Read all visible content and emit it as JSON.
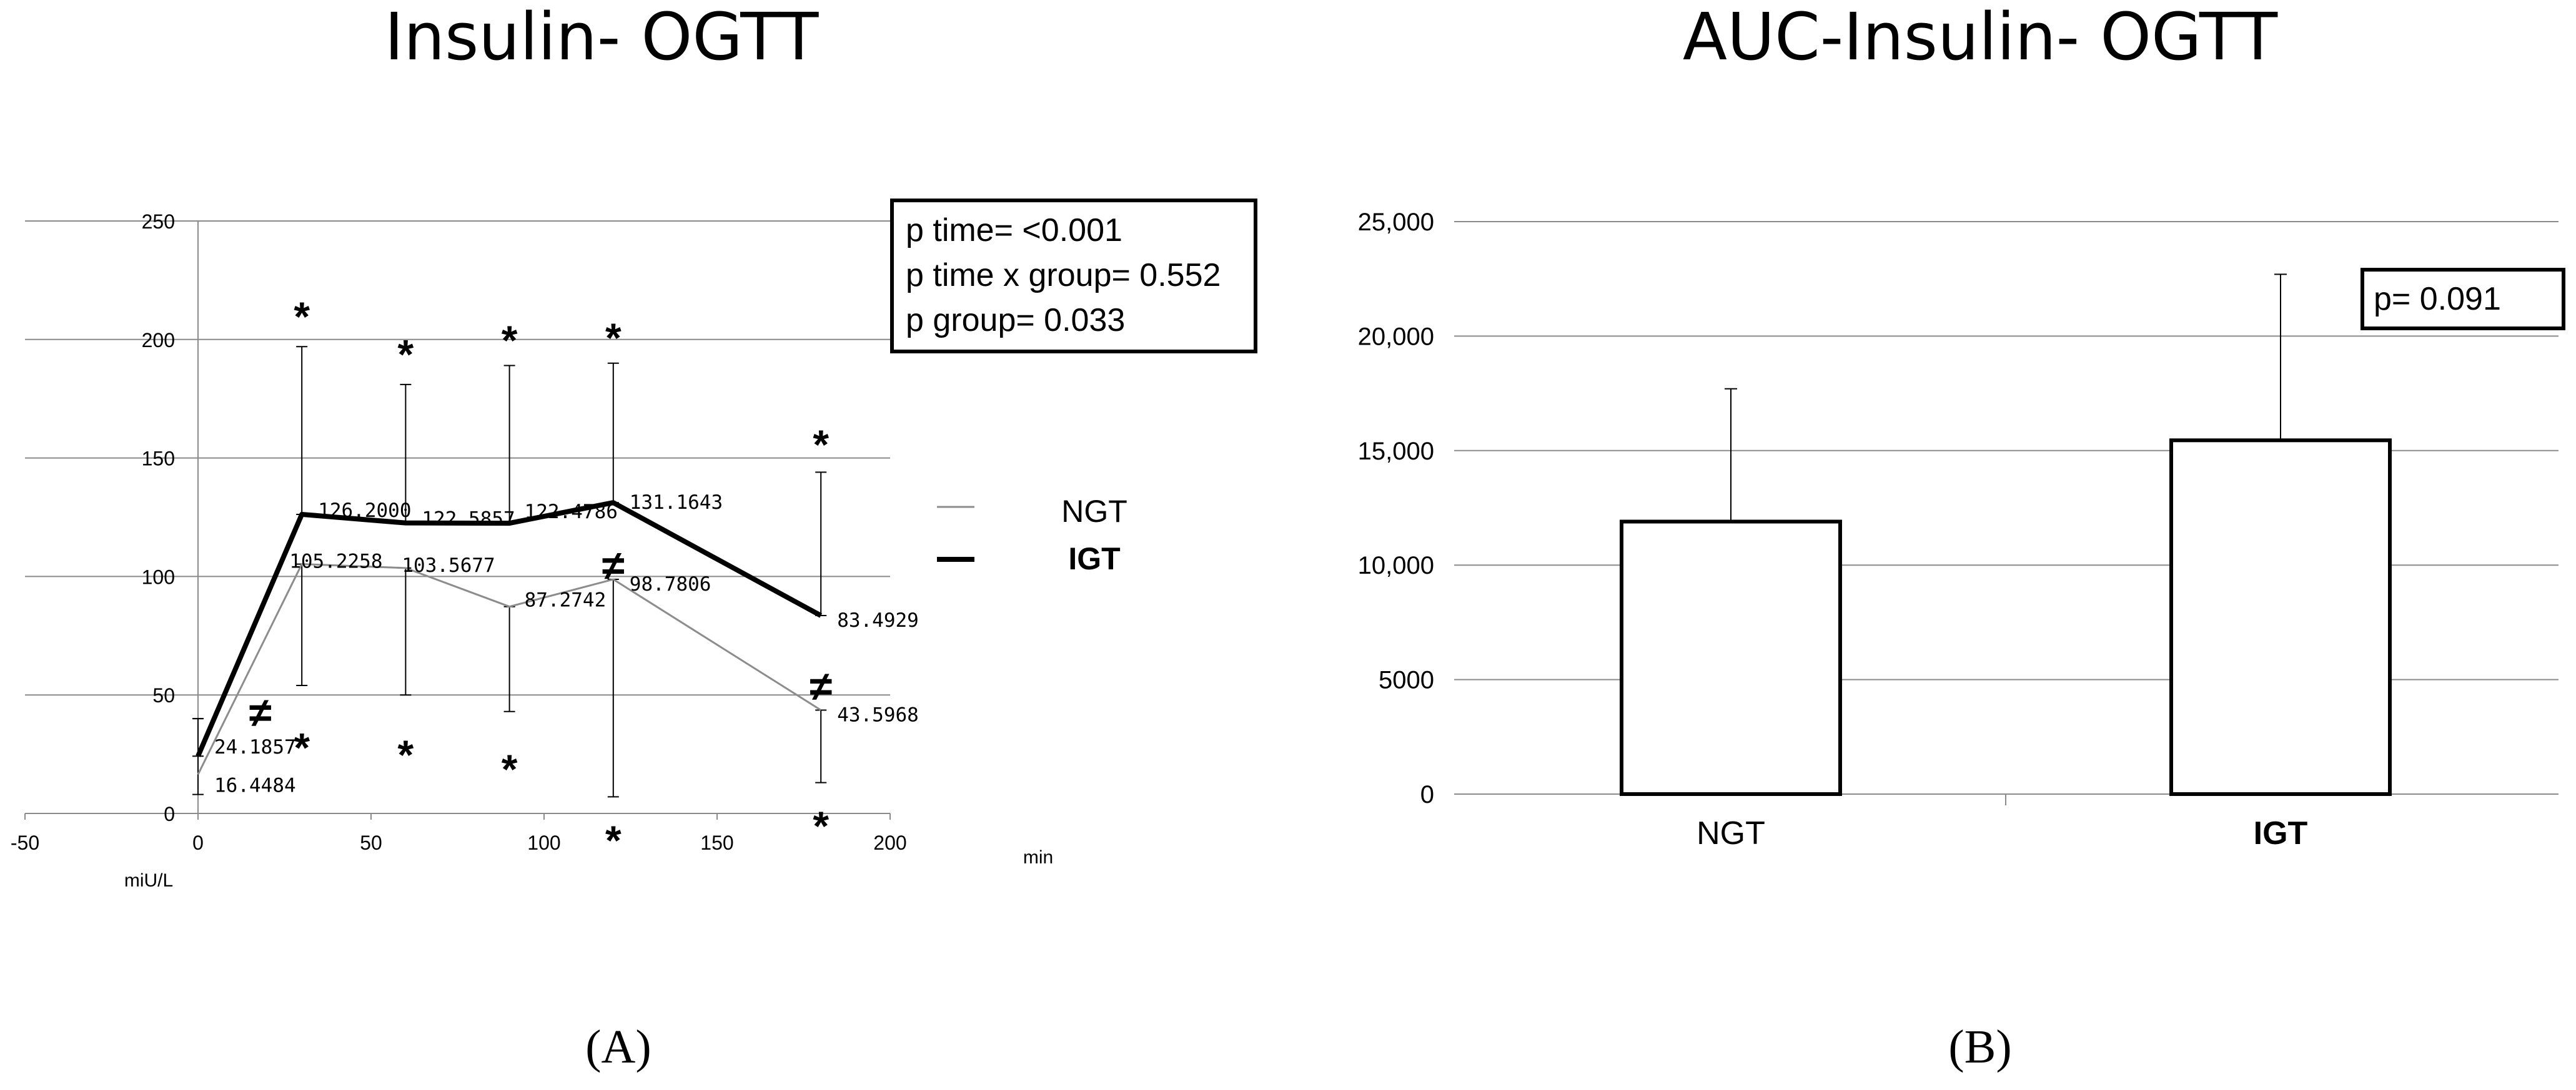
{
  "panels": {
    "a": {
      "label": "(A)"
    },
    "b": {
      "label": "(B)"
    }
  },
  "chart_data": [
    {
      "type": "line",
      "title": "Insulin- OGTT",
      "xlabel": "min",
      "ylabel": "miU/L",
      "xlim": [
        -50,
        200
      ],
      "ylim": [
        0,
        250
      ],
      "x_ticks": [
        "-50",
        "0",
        "50",
        "100",
        "150",
        "200"
      ],
      "y_ticks": [
        "0",
        "50",
        "100",
        "150",
        "200",
        "250"
      ],
      "grid": true,
      "legend_position": "right",
      "x": [
        0,
        30,
        60,
        90,
        120,
        180
      ],
      "series": [
        {
          "name": "NGT",
          "color": "#8c8c8c",
          "values": [
            16.4484,
            105.2258,
            103.5677,
            87.2742,
            98.7806,
            43.5968
          ],
          "labels": [
            "16.4484",
            "105.2258",
            "103.5677",
            "87.2742",
            "98.7806",
            "43.5968"
          ],
          "error_low": [
            8,
            54,
            50,
            43,
            7,
            13
          ],
          "error_high": [
            40,
            105.2258,
            103.5677,
            87.2742,
            98.7806,
            43.5968
          ]
        },
        {
          "name": "IGT",
          "color": "#000000",
          "values": [
            24.1857,
            126.2,
            122.5857,
            122.4786,
            131.1643,
            83.4929
          ],
          "labels": [
            "24.1857",
            "126.2000",
            "122.5857",
            "122.4786",
            "131.1643",
            "83.4929"
          ],
          "error_low": [
            24.1857,
            126.2,
            122.5857,
            122.4786,
            131.1643,
            83.4929
          ],
          "error_high": [
            40,
            197,
            181,
            189,
            190,
            144
          ]
        }
      ],
      "annotations": {
        "stats_box": [
          "p time= <0.001",
          "p time x group= 0.552",
          "p group= 0.033"
        ],
        "marks": [
          {
            "x": 30,
            "y": 210,
            "symbol": "*"
          },
          {
            "x": 60,
            "y": 194,
            "symbol": "*"
          },
          {
            "x": 90,
            "y": 200,
            "symbol": "*"
          },
          {
            "x": 120,
            "y": 201,
            "symbol": "*"
          },
          {
            "x": 180,
            "y": 156,
            "symbol": "*"
          },
          {
            "x": 30,
            "y": 28,
            "symbol": "*"
          },
          {
            "x": 60,
            "y": 25,
            "symbol": "*"
          },
          {
            "x": 90,
            "y": 19,
            "symbol": "*"
          },
          {
            "x": 120,
            "y": -11,
            "symbol": "*"
          },
          {
            "x": 180,
            "y": -5,
            "symbol": "*"
          },
          {
            "x": 18,
            "y": 43,
            "symbol": "≠"
          },
          {
            "x": 120,
            "y": 105,
            "symbol": "≠"
          },
          {
            "x": 180,
            "y": 54,
            "symbol": "≠"
          }
        ]
      }
    },
    {
      "type": "bar",
      "title": "AUC-Insulin- OGTT",
      "xlabel": "",
      "ylabel": "",
      "categories": [
        "NGT",
        "IGT"
      ],
      "values": [
        11900,
        15450
      ],
      "error_high": [
        17700,
        22700
      ],
      "ylim": [
        0,
        25000
      ],
      "y_ticks": [
        "0",
        "5000",
        "10,000",
        "15,000",
        "20,000",
        "25,000"
      ],
      "grid": true,
      "annotations": {
        "stats_box": "p= 0.091"
      }
    }
  ]
}
